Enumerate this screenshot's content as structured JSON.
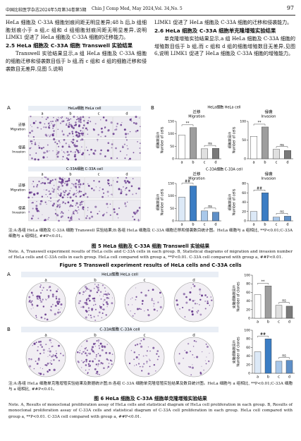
{
  "header": {
    "journal_cn": "中国比较医学杂志2024年5月第34卷第5期",
    "journal_en": "Chin J Comp Med, May 2024,Vol. 34,No. 5",
    "page": "97"
  },
  "body": {
    "left": [
      "HeLa 细胞及 C-33A 细胞划痕间距无明显差异;48 h 后,b 组细胞划痕小于 a 组,c 组和 d 组细胞划痕间距无明显差异,说明 LIMK1 促进了 HeLa 细胞及 C-33A 细胞的迁移能力。",
      "2.5  HeLa 细胞及 C-33A 细胞 Transwell 实验结果",
      "Transwell 实验结果显示,a 组 HeLa 细胞及 C-33A 细胞的细胞迁移和侵袭数目低于 b 组,而 c 组和 d 组的细胞迁移和侵袭数目无差异,见图 5,说明"
    ],
    "right": [
      "LIMK1 促进了 HeLa 细胞及 C-33A 细胞的迁移和侵袭能力。",
      "2.6  HeLa 细胞及 C-33A 细胞单克隆增殖实验结果",
      "单克隆增殖实验结果显示,a 组 HeLa 细胞及 C-33A 细胞的增殖数目低于 b 组,而 c 组和 d 组的细胞增殖数目无差异,见图 6,说明 LIMK1 促进了 HeLa 细胞及 C-33A 细胞的增殖能力。"
    ]
  },
  "figure5": {
    "panel_a": {
      "label": "A",
      "columns": [
        "a",
        "b",
        "c",
        "d"
      ],
      "groups": [
        {
          "title": "HeLa细胞 HeLa cell",
          "rows": [
            [
              "迁移",
              "Migration"
            ],
            [
              "侵袭",
              "Invasion"
            ]
          ]
        },
        {
          "title": "C-33A细胞 C-33A cell",
          "rows": [
            [
              "迁移",
              "Migration"
            ],
            [
              "侵袭",
              "Invasion"
            ]
          ]
        }
      ]
    },
    "panel_b": {
      "label": "B",
      "groups": [
        {
          "title": "HeLa细胞 HeLa cell",
          "charts": [
            {
              "title_cn": "迁移",
              "title_en": "Migration",
              "ylabel_cn": "细胞数目/n",
              "ylabel_en": "Number of cells",
              "categories": [
                "a",
                "b",
                "c",
                "d"
              ],
              "values": [
                95,
                125,
                40,
                42
              ],
              "colors": [
                "#ffffff",
                "#9e9e9e",
                "#e0e0e0",
                "#7a7a7a"
              ],
              "ylim": [
                0,
                150
              ],
              "yticks": [
                0,
                50,
                100,
                150
              ],
              "significance": [
                "**",
                "ns"
              ]
            },
            {
              "title_cn": "侵袭",
              "title_en": "Invasion",
              "ylabel_cn": "细胞数目/n",
              "ylabel_en": "Number of cells",
              "categories": [
                "a",
                "b",
                "c",
                "d"
              ],
              "values": [
                60,
                85,
                25,
                22
              ],
              "colors": [
                "#ffffff",
                "#9e9e9e",
                "#e0e0e0",
                "#7a7a7a"
              ],
              "ylim": [
                0,
                100
              ],
              "yticks": [
                0,
                50,
                100
              ],
              "significance": [
                "**",
                "ns"
              ]
            }
          ]
        },
        {
          "title": "C-33A细胞 C-33A cell",
          "charts": [
            {
              "title_cn": "迁移",
              "title_en": "Migration",
              "ylabel_cn": "细胞数目/n",
              "ylabel_en": "Number of cells",
              "categories": [
                "a",
                "b",
                "c",
                "d"
              ],
              "values": [
                95,
                140,
                40,
                35
              ],
              "colors": [
                "#dce9f7",
                "#3b7dc4",
                "#a9c8ea",
                "#5e8fc7"
              ],
              "ylim": [
                0,
                150
              ],
              "yticks": [
                0,
                50,
                100,
                150
              ],
              "significance": [
                "##",
                "ns"
              ]
            },
            {
              "title_cn": "侵袭",
              "title_en": "Invasion",
              "ylabel_cn": "细胞数目/n",
              "ylabel_en": "Number of cells",
              "categories": [
                "a",
                "b",
                "c",
                "d"
              ],
              "values": [
                20,
                60,
                8,
                10
              ],
              "colors": [
                "#dce9f7",
                "#3b7dc4",
                "#a9c8ea",
                "#5e8fc7"
              ],
              "ylim": [
                0,
                80
              ],
              "yticks": [
                0,
                20,
                40,
                60,
                80
              ],
              "significance": [
                "##",
                "ns"
              ]
            }
          ]
        }
      ]
    },
    "note_cn": "注:A:各组 HeLa 细胞及 C-33A 细胞 Transwell 实验结果;B:各组 HeLa 细胞及 C-33A 细胞迁移和侵袭数目统计图。HeLa 细胞与 a 组相比, **P<0.01;C-33A 细胞与 a 组相比, ##P<0.01。",
    "caption_cn": "图 5  HeLa 细胞及 C-33A 细胞 Transwell 实验结果",
    "note_en": "Note. A, Transwell experiment results of HeLa cells and C-33A cells in each group. B, Statistical diagrams of migration and invasion number of HeLa cells and C-33A cells in each group. HeLa cell compared with group a, **P<0.01. C-33A cell compared with group a, ##P<0.01.",
    "caption_en": "Figure 5  Transwell experiment results of HeLa cells and C-33A cells"
  },
  "figure6": {
    "panels": [
      {
        "label": "A",
        "title": "HeLa细胞 HeLa cell",
        "columns": [
          "a",
          "b",
          "c",
          "d"
        ],
        "chart": {
          "ylabel_cn": "克隆细胞数目/n",
          "ylabel_en": "Number of clones",
          "categories": [
            "a",
            "b",
            "c",
            "d"
          ],
          "values": [
            55,
            75,
            30,
            28
          ],
          "colors": [
            "#ffffff",
            "#9e9e9e",
            "#e0e0e0",
            "#7a7a7a"
          ],
          "ylim": [
            0,
            100
          ],
          "yticks": [
            0,
            20,
            40,
            60,
            80,
            100
          ],
          "significance": [
            "**",
            "ns"
          ]
        }
      },
      {
        "label": "B",
        "title": "C-33A细胞 C-33A cell",
        "columns": [
          "a",
          "b",
          "c",
          "d"
        ],
        "chart": {
          "ylabel_cn": "克隆细胞数目/n",
          "ylabel_en": "Number of clones",
          "categories": [
            "a",
            "b",
            "c",
            "d"
          ],
          "values": [
            50,
            80,
            28,
            30
          ],
          "colors": [
            "#dce9f7",
            "#3b7dc4",
            "#a9c8ea",
            "#5e8fc7"
          ],
          "ylim": [
            0,
            100
          ],
          "yticks": [
            0,
            20,
            40,
            60,
            80,
            100
          ],
          "significance": [
            "##",
            "ns"
          ]
        }
      }
    ],
    "note_cn": "注:A:各组 HeLa 细胞单克隆增殖实验结果及数据统计图;B:各组 C-33A 细胞单克隆增殖实验结果及数目统计图。HeLa 细胞与 a 组相比, **P<0.01;C-33A 细胞与 a 组相比, ##P<0.01。",
    "caption_cn": "图 6  HeLa 细胞及 C-33A 细胞单克隆增殖实验结果",
    "note_en": "Note. A, Results of monoclonal proliferation assay of HeLa cells and statistical diagram of HeLa cell proliferation in each group. B, Results of monoclonal proliferation assay of C-33A cells and statistical diagram of C-33A cell proliferation in each group. HeLa cell compared with group a, **P<0.01. C-33A cell compared with group a, ##P<0.01."
  }
}
